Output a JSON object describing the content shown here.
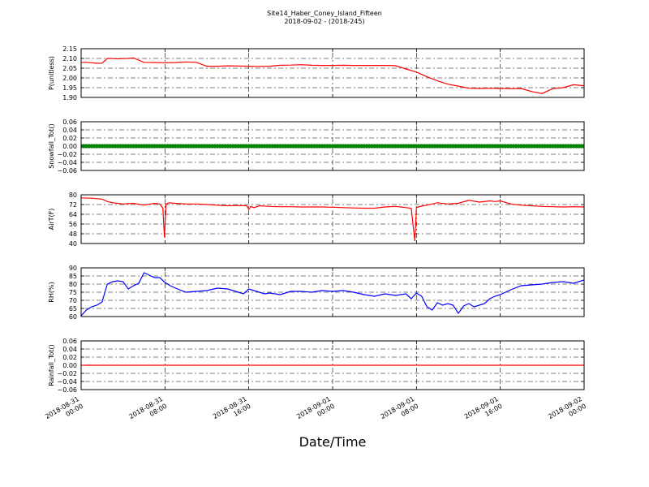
{
  "figure": {
    "title": "Site14_Haber_Coney_Island_Fifteen",
    "subtitle": "2018-09-02 - (2018-245)",
    "xlabel": "Date/Time"
  },
  "chart_data": [
    {
      "type": "line",
      "ylabel": "P(unitless)",
      "ylim": [
        1.9,
        2.15
      ],
      "yticks": [
        "2.15",
        "2.10",
        "2.05",
        "2.00",
        "1.95",
        "1.90"
      ],
      "color": "#ff0000",
      "grid": true,
      "x": [
        0,
        0.5,
        1,
        1.5,
        2,
        2.5,
        3,
        3.5,
        4,
        4.5,
        5,
        6,
        7,
        8,
        9,
        10,
        11,
        12,
        13,
        14,
        15,
        16,
        17,
        18,
        19,
        20,
        21,
        22,
        23,
        24,
        25,
        26,
        27,
        28,
        29,
        30,
        31,
        32,
        33,
        34,
        35,
        36,
        37,
        38,
        39,
        40,
        41,
        42,
        43,
        44,
        45,
        46,
        47,
        48
      ],
      "values": [
        2.08,
        2.08,
        2.078,
        2.075,
        2.076,
        2.1,
        2.099,
        2.098,
        2.099,
        2.1,
        2.102,
        2.08,
        2.079,
        2.078,
        2.079,
        2.082,
        2.08,
        2.06,
        2.06,
        2.062,
        2.061,
        2.06,
        2.059,
        2.06,
        2.065,
        2.066,
        2.068,
        2.065,
        2.064,
        2.064,
        2.065,
        2.064,
        2.064,
        2.064,
        2.064,
        2.063,
        2.046,
        2.03,
        2.006,
        1.985,
        1.968,
        1.958,
        1.947,
        1.946,
        1.947,
        1.946,
        1.945,
        1.946,
        1.93,
        1.92,
        1.945,
        1.95,
        1.965,
        1.96
      ]
    },
    {
      "type": "scatter",
      "ylabel": "Snowfall_Tot()",
      "ylim": [
        -0.06,
        0.06
      ],
      "yticks": [
        "0.06",
        "0.04",
        "0.02",
        "0.00",
        "−0.02",
        "−0.04",
        "−0.06"
      ],
      "color": "#008000",
      "grid": true,
      "x_start": 0,
      "x_end": 48,
      "x_step": 0.25,
      "value": 0.0
    },
    {
      "type": "line",
      "ylabel": "AirT(F)",
      "ylim": [
        40,
        80
      ],
      "yticks": [
        "80",
        "72",
        "64",
        "56",
        "48",
        "40"
      ],
      "color": "#ff0000",
      "grid": true,
      "x": [
        0,
        1,
        2,
        2.5,
        3,
        3.5,
        4,
        5,
        6,
        7,
        7.5,
        7.8,
        7.95,
        8.1,
        8.4,
        9,
        10,
        11,
        12,
        13,
        14,
        15,
        15.8,
        16,
        16.2,
        16.5,
        17,
        18,
        19,
        20,
        21,
        22,
        23,
        24,
        25,
        26,
        27,
        28,
        29,
        30,
        31,
        31.5,
        31.85,
        32,
        32.2,
        32.6,
        33,
        34,
        35,
        36,
        37,
        38,
        39,
        39.5,
        40,
        41,
        42,
        43,
        44,
        45,
        46,
        47,
        48
      ],
      "values": [
        77.5,
        77.2,
        76.5,
        74.5,
        73.5,
        73,
        72.5,
        73,
        71.5,
        73,
        72.5,
        69,
        45,
        72.5,
        73.5,
        73,
        72.5,
        72.5,
        72,
        71.5,
        71,
        71.2,
        71,
        68,
        70.5,
        69.5,
        71,
        70.5,
        70.2,
        70.2,
        70,
        70,
        70,
        69.8,
        69.5,
        69.2,
        69,
        69,
        70,
        70.5,
        69.5,
        69,
        42,
        69.5,
        70,
        71,
        71.5,
        73.5,
        72.5,
        73,
        75.5,
        74,
        75,
        74.5,
        75,
        72.5,
        71.5,
        71,
        70.5,
        70.2,
        70,
        70.2,
        70
      ]
    },
    {
      "type": "line",
      "ylabel": "RH(%)",
      "ylim": [
        60,
        90
      ],
      "yticks": [
        "90",
        "85",
        "80",
        "75",
        "70",
        "65",
        "60"
      ],
      "color": "#0000ff",
      "grid": true,
      "x": [
        0,
        0.5,
        1,
        1.5,
        2,
        2.5,
        3,
        3.5,
        4,
        4.5,
        5,
        5.5,
        6,
        6.5,
        7,
        7.5,
        8,
        8.5,
        9,
        10,
        11,
        12,
        13,
        14,
        15,
        15.5,
        16,
        16.5,
        17,
        17.5,
        18,
        19,
        20,
        21,
        22,
        23,
        24,
        25,
        26,
        27,
        28,
        29,
        30,
        31,
        31.5,
        32,
        32.5,
        33,
        33.5,
        34,
        34.5,
        35,
        35.5,
        36,
        36.5,
        37,
        37.5,
        38,
        38.5,
        39,
        39.5,
        40,
        41,
        42,
        43,
        44,
        45,
        46,
        47,
        48
      ],
      "values": [
        60.5,
        64,
        66,
        67,
        69,
        80,
        81.5,
        82,
        81.5,
        77,
        79,
        80.5,
        87,
        85.5,
        84,
        84,
        81,
        79,
        77.5,
        75,
        75.5,
        76,
        77.5,
        77,
        75,
        74,
        77,
        76,
        75,
        74,
        74.5,
        73.5,
        75.5,
        75.5,
        75,
        76,
        75.5,
        76,
        75,
        73.5,
        72.5,
        74,
        73,
        74,
        71,
        74.5,
        72.5,
        66,
        64,
        68.5,
        67,
        68,
        67,
        62,
        66.5,
        68,
        66,
        67,
        68,
        71,
        72.5,
        73.5,
        76.5,
        79,
        79.5,
        80,
        81,
        81.5,
        80.5,
        82.5
      ]
    },
    {
      "type": "line",
      "ylabel": "Rainfall_Tot()",
      "ylim": [
        -0.06,
        0.06
      ],
      "yticks": [
        "0.06",
        "0.04",
        "0.02",
        "0.00",
        "−0.02",
        "−0.04",
        "−0.06"
      ],
      "color": "#ff0000",
      "grid": true,
      "x": [
        0,
        48
      ],
      "values": [
        0,
        0
      ]
    }
  ],
  "x_axis": {
    "range_hours": [
      0,
      48
    ],
    "tick_hours": [
      0,
      8,
      16,
      24,
      32,
      40,
      48
    ],
    "tick_labels": [
      [
        "2018-08-31",
        "00:00"
      ],
      [
        "2018-08-31",
        "08:00"
      ],
      [
        "2018-08-31",
        "16:00"
      ],
      [
        "2018-09-01",
        "00:00"
      ],
      [
        "2018-09-01",
        "08:00"
      ],
      [
        "2018-09-01",
        "16:00"
      ],
      [
        "2018-09-02",
        "00:00"
      ]
    ]
  }
}
